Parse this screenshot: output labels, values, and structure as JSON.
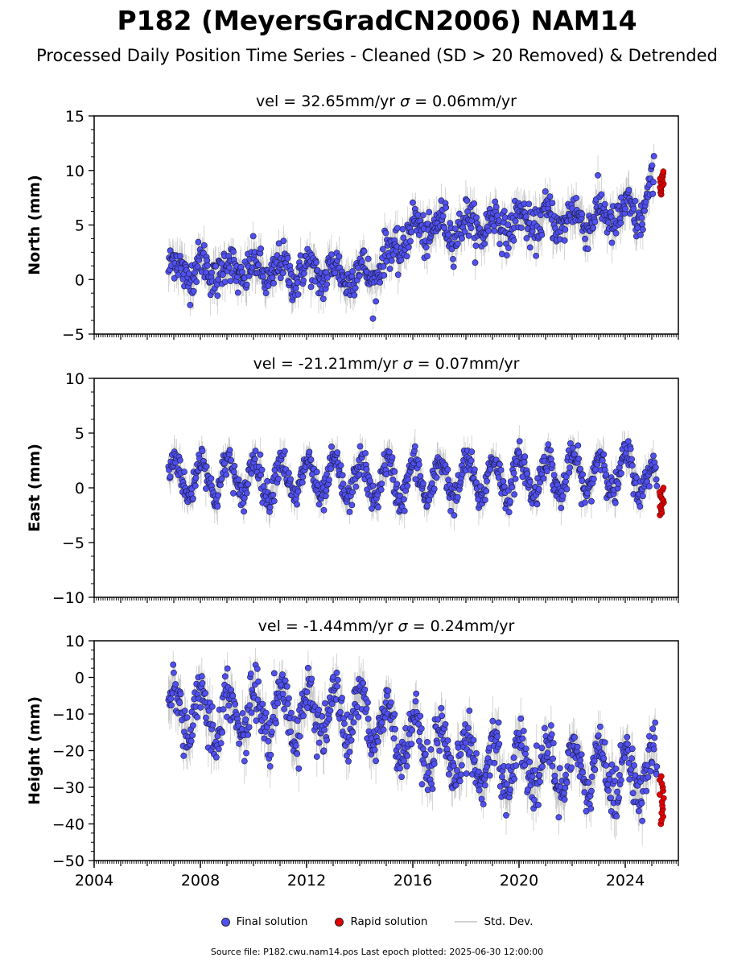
{
  "title": "P182 (MeyersGradCN2006) NAM14",
  "subtitle": "Processed Daily Position Time Series - Cleaned (SD > 20 Removed) & Detrended",
  "legend": {
    "final": "Final solution",
    "rapid": "Rapid solution",
    "std": "Std. Dev."
  },
  "footer": "Source file: P182.cwu.nam14.pos  Last epoch plotted: 2025-06-30 12:00:00",
  "colors": {
    "final": "#5050f0",
    "rapid": "#e00000",
    "std": "#b8b8b8"
  },
  "chart_data": [
    {
      "type": "scatter",
      "title_prefix": "vel = 32.65mm/yr",
      "title_sigma": "= 0.06mm/yr",
      "ylabel": "North (mm)",
      "xlim": [
        2004,
        2026
      ],
      "ylim": [
        -5,
        15
      ],
      "yticks": [
        -5,
        0,
        5,
        10,
        15
      ],
      "xticks": [
        2004,
        2008,
        2012,
        2016,
        2020,
        2024
      ],
      "show_xtick_labels": false,
      "final_trend": [
        [
          2006.8,
          1.0
        ],
        [
          2014.5,
          0.5
        ],
        [
          2016.0,
          4.5
        ],
        [
          2024.5,
          6.0
        ],
        [
          2025.1,
          8.5
        ]
      ],
      "seasonal_amp": 1.0,
      "noise": 0.9,
      "sd": 1.4,
      "rapid": {
        "x_range": [
          2025.3,
          2025.45
        ],
        "y_range": [
          7.8,
          9.9
        ]
      }
    },
    {
      "type": "scatter",
      "title_prefix": "vel = -21.21mm/yr",
      "title_sigma": "= 0.07mm/yr",
      "ylabel": "East (mm)",
      "xlim": [
        2004,
        2026
      ],
      "ylim": [
        -10,
        10
      ],
      "yticks": [
        -10,
        -5,
        0,
        5,
        10
      ],
      "xticks": [
        2004,
        2008,
        2012,
        2016,
        2020,
        2024
      ],
      "show_xtick_labels": false,
      "final_trend": [
        [
          2006.8,
          1.0
        ],
        [
          2016.0,
          0.6
        ],
        [
          2024.5,
          1.4
        ],
        [
          2025.2,
          0.0
        ]
      ],
      "seasonal_amp": 1.8,
      "noise": 0.7,
      "sd": 1.2,
      "rapid": {
        "x_range": [
          2025.3,
          2025.45
        ],
        "y_range": [
          -2.5,
          0.0
        ]
      }
    },
    {
      "type": "scatter",
      "title_prefix": "vel = -1.44mm/yr",
      "title_sigma": "= 0.24mm/yr",
      "ylabel": "Height (mm)",
      "xlim": [
        2004,
        2026
      ],
      "ylim": [
        -50,
        10
      ],
      "yticks": [
        -50,
        -40,
        -30,
        -20,
        -10,
        0,
        10
      ],
      "xticks": [
        2004,
        2008,
        2012,
        2016,
        2020,
        2024
      ],
      "show_xtick_labels": true,
      "final_trend": [
        [
          2006.8,
          -10.0
        ],
        [
          2014.0,
          -10.0
        ],
        [
          2017.0,
          -22.0
        ],
        [
          2025.2,
          -27.0
        ]
      ],
      "seasonal_amp": 7.0,
      "noise": 3.5,
      "sd": 5.0,
      "rapid": {
        "x_range": [
          2025.3,
          2025.45
        ],
        "y_range": [
          -40.0,
          -27.0
        ]
      }
    }
  ]
}
